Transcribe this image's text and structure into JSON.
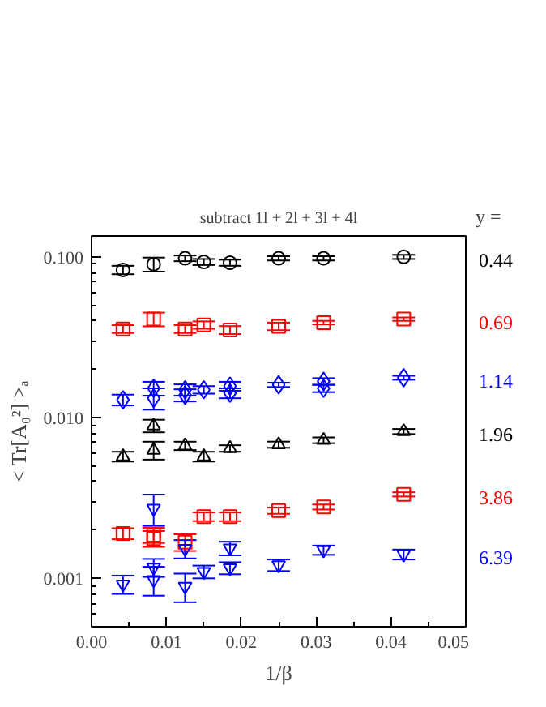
{
  "chart_data": {
    "type": "scatter",
    "title": "subtract 1l + 2l + 3l + 4l",
    "xlabel": "1/β",
    "ylabel": "< Tr[A₀²] >ₐ",
    "legend_title": "y =",
    "log": "y",
    "grid": false,
    "xlim": [
      0,
      0.05
    ],
    "xticks": [
      {
        "value": 0,
        "label": "0.00"
      },
      {
        "value": 0.01,
        "label": "0.01"
      },
      {
        "value": 0.02,
        "label": "0.02"
      },
      {
        "value": 0.03,
        "label": "0.03"
      },
      {
        "value": 0.04,
        "label": "0.04"
      },
      {
        "value": 0.05,
        "label": "0.05"
      }
    ],
    "ylim": [
      0.0005,
      0.135
    ],
    "yticks": [
      {
        "value": 0.001,
        "label": "0.001"
      },
      {
        "value": 0.01,
        "label": "0.010"
      },
      {
        "value": 0.1,
        "label": "0.100"
      }
    ],
    "series": [
      {
        "name": "0.44",
        "color": "#000000",
        "marker": "circle",
        "x": [
          0.0042,
          0.0083,
          0.0125,
          0.015,
          0.0185,
          0.025,
          0.031,
          0.0417
        ],
        "values": [
          0.083,
          0.09,
          0.098,
          0.093,
          0.092,
          0.098,
          0.098,
          0.1
        ],
        "errors": [
          0.005,
          0.009,
          0.004,
          0.004,
          0.004,
          0.003,
          0.003,
          0.003
        ]
      },
      {
        "name": "0.69",
        "color": "#ff0000",
        "marker": "square",
        "x": [
          0.0042,
          0.0083,
          0.0125,
          0.015,
          0.0185,
          0.025,
          0.031,
          0.0417
        ],
        "values": [
          0.0356,
          0.041,
          0.0356,
          0.0377,
          0.0351,
          0.037,
          0.039,
          0.041
        ],
        "errors": [
          0.002,
          0.004,
          0.002,
          0.002,
          0.002,
          0.002,
          0.001,
          0.001
        ]
      },
      {
        "name": "1.14",
        "color": "#0000ff",
        "marker": "diamond",
        "x": [
          0.0042,
          0.0083,
          0.0083,
          0.0125,
          0.0125,
          0.015,
          0.0185,
          0.0185,
          0.025,
          0.031,
          0.031,
          0.0417
        ],
        "values": [
          0.0129,
          0.0152,
          0.0132,
          0.0149,
          0.0138,
          0.0149,
          0.0157,
          0.0142,
          0.016,
          0.0168,
          0.0152,
          0.0177
        ],
        "errors": [
          0.001,
          0.0015,
          0.002,
          0.0012,
          0.0012,
          0.0008,
          0.001,
          0.001,
          0.0005,
          0.0008,
          0.0008,
          0.0005
        ]
      },
      {
        "name": "1.96",
        "color": "#000000",
        "marker": "triangle",
        "x": [
          0.0042,
          0.0083,
          0.0083,
          0.0125,
          0.015,
          0.0185,
          0.025,
          0.031,
          0.0417
        ],
        "values": [
          0.00573,
          0.0089,
          0.00628,
          0.00668,
          0.00573,
          0.00643,
          0.00679,
          0.00723,
          0.0082
        ],
        "errors": [
          0.0004,
          0.0008,
          0.0008,
          0.0004,
          0.0004,
          0.0003,
          0.0003,
          0.0003,
          0.0003
        ]
      },
      {
        "name": "3.86",
        "color": "#ff0000",
        "marker": "square",
        "x": [
          0.0042,
          0.0083,
          0.0083,
          0.0125,
          0.015,
          0.0185,
          0.025,
          0.031,
          0.0417
        ],
        "values": [
          0.0019,
          0.00186,
          0.00177,
          0.00168,
          0.00242,
          0.00242,
          0.00264,
          0.00278,
          0.00333
        ],
        "errors": [
          0.00015,
          0.0002,
          0.0002,
          0.0002,
          0.00015,
          0.00015,
          0.00012,
          0.0001,
          0.0001
        ]
      },
      {
        "name": "6.39",
        "color": "#0000ff",
        "marker": "triangle",
        "x": [
          0.0042,
          0.0083,
          0.0083,
          0.0083,
          0.0125,
          0.0125,
          0.015,
          0.0185,
          0.0185,
          0.025,
          0.031,
          0.0417
        ],
        "values": [
          0.00092,
          0.00272,
          0.00117,
          0.00098,
          0.00153,
          0.00089,
          0.0011,
          0.00154,
          0.00116,
          0.00121,
          0.0015,
          0.00141
        ],
        "errors": [
          0.00012,
          0.0006,
          0.00015,
          0.0002,
          0.0002,
          0.00018,
          0.0001,
          0.00015,
          0.0001,
          0.0001,
          0.0001,
          0.0001
        ]
      }
    ]
  }
}
